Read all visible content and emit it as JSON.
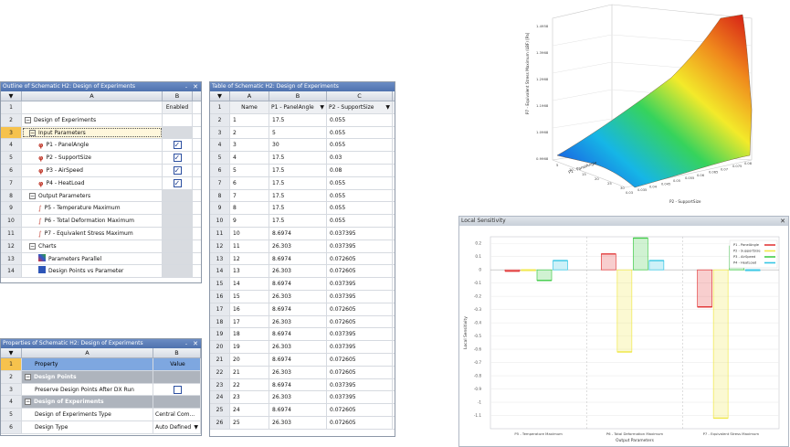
{
  "outline": {
    "title": "Outline of Schematic H2: Design of Experiments",
    "col_a": "A",
    "col_b": "B",
    "enabled_label": "Enabled",
    "rows": [
      {
        "n": "1",
        "label": "",
        "indent": 0,
        "kind": "blank",
        "b": "enabled"
      },
      {
        "n": "2",
        "label": "Design of Experiments",
        "indent": 0,
        "kind": "minus",
        "b": ""
      },
      {
        "n": "3",
        "label": "Input Parameters",
        "indent": 1,
        "kind": "minus",
        "b": "gray"
      },
      {
        "n": "4",
        "label": "P1 - PanelAngle",
        "indent": 3,
        "kind": "param-in",
        "b": "check"
      },
      {
        "n": "5",
        "label": "P2 - SupportSize",
        "indent": 3,
        "kind": "param-in",
        "b": "check"
      },
      {
        "n": "6",
        "label": "P3 - AirSpeed",
        "indent": 3,
        "kind": "param-in",
        "b": "check"
      },
      {
        "n": "7",
        "label": "P4 - HeatLoad",
        "indent": 3,
        "kind": "param-in",
        "b": "check"
      },
      {
        "n": "8",
        "label": "Output Parameters",
        "indent": 1,
        "kind": "minus",
        "b": "gray"
      },
      {
        "n": "9",
        "label": "P5 - Temperature Maximum",
        "indent": 3,
        "kind": "param-out",
        "b": "gray"
      },
      {
        "n": "10",
        "label": "P6 - Total Deformation Maximum",
        "indent": 3,
        "kind": "param-out",
        "b": "gray"
      },
      {
        "n": "11",
        "label": "P7 - Equivalent Stress Maximum",
        "indent": 3,
        "kind": "param-out",
        "b": "gray"
      },
      {
        "n": "12",
        "label": "Charts",
        "indent": 1,
        "kind": "minus",
        "b": "gray"
      },
      {
        "n": "13",
        "label": "Parameters Parallel",
        "indent": 3,
        "kind": "chart",
        "b": "gray"
      },
      {
        "n": "14",
        "label": "Design Points vs Parameter",
        "indent": 3,
        "kind": "scatter",
        "b": "gray"
      }
    ]
  },
  "table": {
    "title": "Table of Schematic H2: Design of Experiments",
    "cols": [
      "A",
      "B",
      "C"
    ],
    "headers": [
      "Name",
      "P1 - PanelAngle",
      "P2 - SupportSize"
    ],
    "rows": [
      [
        "1",
        "17.5",
        "0.055"
      ],
      [
        "2",
        "5",
        "0.055"
      ],
      [
        "3",
        "30",
        "0.055"
      ],
      [
        "4",
        "17.5",
        "0.03"
      ],
      [
        "5",
        "17.5",
        "0.08"
      ],
      [
        "6",
        "17.5",
        "0.055"
      ],
      [
        "7",
        "17.5",
        "0.055"
      ],
      [
        "8",
        "17.5",
        "0.055"
      ],
      [
        "9",
        "17.5",
        "0.055"
      ],
      [
        "10",
        "8.6974",
        "0.037395"
      ],
      [
        "11",
        "26.303",
        "0.037395"
      ],
      [
        "12",
        "8.6974",
        "0.072605"
      ],
      [
        "13",
        "26.303",
        "0.072605"
      ],
      [
        "14",
        "8.6974",
        "0.037395"
      ],
      [
        "15",
        "26.303",
        "0.037395"
      ],
      [
        "16",
        "8.6974",
        "0.072605"
      ],
      [
        "17",
        "26.303",
        "0.072605"
      ],
      [
        "18",
        "8.6974",
        "0.037395"
      ],
      [
        "19",
        "26.303",
        "0.037395"
      ],
      [
        "20",
        "8.6974",
        "0.072605"
      ],
      [
        "21",
        "26.303",
        "0.072605"
      ],
      [
        "22",
        "8.6974",
        "0.037395"
      ],
      [
        "23",
        "26.303",
        "0.037395"
      ],
      [
        "24",
        "8.6974",
        "0.072605"
      ],
      [
        "25",
        "26.303",
        "0.072605"
      ]
    ]
  },
  "properties": {
    "title": "Properties of Schematic H2: Design of Experiments",
    "col_a": "A",
    "col_b": "B",
    "rows": [
      {
        "n": "1",
        "a": "Property",
        "b": "Value",
        "kind": "header"
      },
      {
        "n": "2",
        "a": "Design Points",
        "b": "",
        "kind": "section"
      },
      {
        "n": "3",
        "a": "Preserve Design Points After DX Run",
        "b": "",
        "kind": "check"
      },
      {
        "n": "4",
        "a": "Design of Experiments",
        "b": "",
        "kind": "section"
      },
      {
        "n": "5",
        "a": "Design of Experiments Type",
        "b": "Central Com...",
        "kind": "select"
      },
      {
        "n": "6",
        "a": "Design Type",
        "b": "Auto Defined",
        "kind": "select"
      }
    ]
  },
  "surface_chart": {
    "zlabel": "P7 - Equivalent Stress Maximum (LBF) [Pa]",
    "xlabel": "P1 - PanelAngle",
    "ylabel": "P2 - SupportSize",
    "z_ticks": [
      "1.4958",
      "1.3968",
      "1.2968",
      "1.1968",
      "1.0968",
      "0.9968"
    ],
    "x_ticks": [
      "5",
      "10",
      "15",
      "20",
      "25",
      "30"
    ],
    "y_ticks": [
      "0.03",
      "0.035",
      "0.04",
      "0.045",
      "0.05",
      "0.055",
      "0.06",
      "0.065",
      "0.07",
      "0.075",
      "0.08"
    ]
  },
  "chart_data": {
    "type": "bar",
    "title": "Local Sensitivity",
    "xlabel": "Output Parameters",
    "ylabel": "Local Sensitivity",
    "ylim": [
      -1.2,
      0.25
    ],
    "categories": [
      "P5 - Temperature Maximum",
      "P6 - Total Deformation Maximum",
      "P7 - Equivalent Stress Maximum"
    ],
    "series": [
      {
        "name": "P1 - PanelAngle",
        "color": "#e23a3a",
        "values": [
          -0.01,
          0.12,
          -0.28
        ]
      },
      {
        "name": "P2 - SupportSize",
        "color": "#f0e84a",
        "values": [
          0.0,
          -0.62,
          -1.12
        ]
      },
      {
        "name": "P3 - AirSpeed",
        "color": "#43cc4a",
        "values": [
          -0.08,
          0.24,
          0.18
        ]
      },
      {
        "name": "P4 - HeatLoad",
        "color": "#36c6e4",
        "values": [
          0.07,
          0.07,
          0.0
        ]
      }
    ],
    "y_ticks": [
      0.2,
      0.1,
      0,
      -0.1,
      -0.2,
      -0.3,
      -0.4,
      -0.5,
      -0.6,
      -0.7,
      -0.8,
      -0.9,
      -1,
      -1.1
    ],
    "legend_position": "top-right"
  }
}
